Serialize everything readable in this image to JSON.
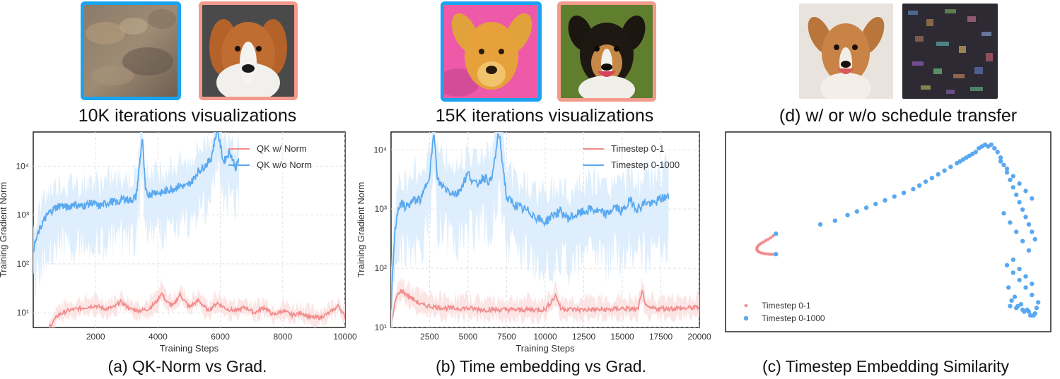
{
  "colors": {
    "blue": "#5aa9f0",
    "blue_fill": "#d8ebfb",
    "red": "#f28d8d",
    "red_fill": "#fbe0e0",
    "frame_blue": "#1aa3ee",
    "frame_pink": "#f39a8c"
  },
  "top_row": {
    "group_a": {
      "caption": "10K iterations visualizations",
      "left_image": "noise-texture-image",
      "right_image": "dog-portrait-image"
    },
    "group_b": {
      "caption": "15K iterations visualizations",
      "left_image": "painted-dog-image",
      "right_image": "dog-portrait-image"
    },
    "group_d": {
      "caption": "(d) w/ or w/o schedule transfer",
      "left_image": "dog-portrait-image",
      "right_image": "noise-texture-image"
    }
  },
  "chart_data": [
    {
      "id": "a",
      "type": "line",
      "caption": "(a) QK-Norm vs Grad.",
      "xlabel": "Training Steps",
      "ylabel": "Training Gradient Norm",
      "yscale": "log",
      "xlim": [
        0,
        10000
      ],
      "ylim": [
        5,
        50000
      ],
      "x_ticks": [
        2000,
        4000,
        6000,
        8000,
        10000
      ],
      "x_tick_labels": [
        "2000",
        "4000",
        "6000",
        "8000",
        "10000"
      ],
      "y_ticks": [
        10,
        100,
        1000,
        10000
      ],
      "y_tick_labels": [
        "10¹",
        "10²",
        "10³",
        "10⁴"
      ],
      "legend_position": "top-right",
      "series": [
        {
          "name": "QK w/ Norm",
          "color": "#f28d8d",
          "x": [
            500,
            800,
            1100,
            1400,
            1700,
            2000,
            2300,
            2600,
            2800,
            3100,
            3400,
            3700,
            4000,
            4100,
            4300,
            4500,
            4700,
            5000,
            5300,
            5600,
            5900,
            6200,
            6500,
            6800,
            7100,
            7400,
            7700,
            8000,
            8300,
            8600,
            8900,
            9200,
            9500,
            9800,
            10000
          ],
          "y": [
            5,
            9,
            11,
            12,
            13,
            14,
            12,
            13,
            17,
            12,
            11,
            12,
            18,
            26,
            16,
            14,
            24,
            13,
            18,
            11,
            16,
            12,
            11,
            13,
            10,
            13,
            9,
            11,
            9,
            10,
            8,
            8,
            10,
            14,
            8
          ]
        },
        {
          "name": "QK w/o Norm",
          "color": "#5aa9f0",
          "x": [
            0,
            150,
            300,
            500,
            700,
            900,
            1100,
            1300,
            1500,
            1700,
            1900,
            2100,
            2300,
            2500,
            2700,
            2900,
            3100,
            3300,
            3500,
            3600,
            3700,
            3900,
            4100,
            4300,
            4500,
            4700,
            4900,
            5100,
            5300,
            5500,
            5700,
            5900,
            6100,
            6300,
            6500,
            6600
          ],
          "y": [
            200,
            400,
            700,
            1100,
            1400,
            1600,
            1400,
            1700,
            1500,
            1600,
            1800,
            1500,
            1700,
            1900,
            1800,
            2200,
            2000,
            2300,
            40000,
            3000,
            2600,
            3000,
            2800,
            3200,
            3500,
            4000,
            3800,
            5000,
            8000,
            10000,
            14000,
            60000,
            12000,
            20000,
            9000,
            15000
          ]
        }
      ],
      "band_note": "shaded raw-variance bands behind each series"
    },
    {
      "id": "b",
      "type": "line",
      "caption": "(b) Time embedding vs Grad.",
      "xlabel": "Training Steps",
      "ylabel": "Training Gradient Norm",
      "yscale": "log",
      "xlim": [
        0,
        20000
      ],
      "ylim": [
        10,
        20000
      ],
      "x_ticks": [
        2500,
        5000,
        7500,
        10000,
        12500,
        15000,
        17500,
        20000
      ],
      "x_tick_labels": [
        "2500",
        "5000",
        "7500",
        "10000",
        "12500",
        "15000",
        "17500",
        "20000"
      ],
      "y_ticks": [
        10,
        100,
        1000,
        10000
      ],
      "y_tick_labels": [
        "10¹",
        "10²",
        "10³",
        "10⁴"
      ],
      "legend_position": "top-right",
      "series": [
        {
          "name": "Timestep 0-1",
          "color": "#f28d8d",
          "x": [
            0,
            300,
            600,
            900,
            1200,
            1600,
            2000,
            2500,
            3000,
            4000,
            5000,
            6000,
            7000,
            8000,
            9000,
            10000,
            10700,
            11000,
            12000,
            13000,
            14000,
            15000,
            16000,
            16300,
            16600,
            17000,
            18000,
            19000,
            20000
          ],
          "y": [
            10,
            30,
            42,
            38,
            33,
            28,
            24,
            23,
            22,
            21,
            21,
            20,
            20,
            20,
            20,
            20,
            35,
            21,
            20,
            20,
            20,
            21,
            20,
            40,
            21,
            21,
            21,
            21,
            22
          ]
        },
        {
          "name": "Timestep 0-1000",
          "color": "#5aa9f0",
          "x": [
            0,
            200,
            400,
            600,
            1000,
            1500,
            2000,
            2500,
            2800,
            3000,
            3300,
            3800,
            4300,
            5000,
            5500,
            6000,
            6500,
            7000,
            7500,
            8000,
            8500,
            9000,
            9500,
            10000,
            10500,
            11000,
            11500,
            12000,
            13000,
            14000,
            14500,
            15000,
            15500,
            16000,
            16500,
            17000,
            17500,
            18000
          ],
          "y": [
            20,
            300,
            900,
            1200,
            1100,
            1400,
            1500,
            4000,
            20000,
            3000,
            2500,
            2000,
            1800,
            4000,
            2500,
            3500,
            2800,
            20000,
            1500,
            1200,
            1000,
            900,
            700,
            600,
            800,
            900,
            700,
            800,
            1000,
            800,
            1100,
            900,
            1400,
            1000,
            1300,
            1200,
            1500,
            1600
          ]
        }
      ],
      "band_note": "shaded raw-variance bands behind each series"
    },
    {
      "id": "c",
      "type": "scatter",
      "caption": "(c) Timestep Embedding Similarity",
      "xlabel": "",
      "ylabel": "",
      "axes_hidden": true,
      "xlim": [
        0,
        1
      ],
      "ylim": [
        0,
        1
      ],
      "legend_position": "lower-left",
      "series": [
        {
          "name": "Timestep 0-1",
          "color": "#f28d8d",
          "x": [
            0.14,
            0.132,
            0.124,
            0.116,
            0.108,
            0.1,
            0.092,
            0.086,
            0.082,
            0.08,
            0.08,
            0.083,
            0.088,
            0.095,
            0.103,
            0.111,
            0.119,
            0.127,
            0.135,
            0.14
          ],
          "y": [
            0.49,
            0.478,
            0.468,
            0.46,
            0.452,
            0.444,
            0.436,
            0.428,
            0.42,
            0.412,
            0.404,
            0.396,
            0.39,
            0.386,
            0.383,
            0.381,
            0.38,
            0.379,
            0.379,
            0.379
          ]
        },
        {
          "name": "Timestep 0-1000",
          "color": "#5aa9f0",
          "x": [
            0.141,
            0.141,
            0.283,
            0.33,
            0.37,
            0.4,
            0.43,
            0.46,
            0.49,
            0.52,
            0.55,
            0.58,
            0.6,
            0.62,
            0.64,
            0.66,
            0.68,
            0.7,
            0.72,
            0.73,
            0.74,
            0.75,
            0.76,
            0.77,
            0.78,
            0.79,
            0.8,
            0.81,
            0.82,
            0.83,
            0.84,
            0.85,
            0.86,
            0.87,
            0.88,
            0.89,
            0.9,
            0.91,
            0.92,
            0.93,
            0.94,
            0.95,
            0.96,
            0.97,
            0.86,
            0.88,
            0.9,
            0.92,
            0.94,
            0.96,
            0.87,
            0.89,
            0.91,
            0.93,
            0.95,
            0.88,
            0.9,
            0.92,
            0.94,
            0.96,
            0.98,
            0.89,
            0.91,
            0.93,
            0.95,
            0.97,
            0.885,
            0.905,
            0.925,
            0.945,
            0.965,
            0.9,
            0.92,
            0.94,
            0.96,
            0.895,
            0.915,
            0.935,
            0.955,
            0.975
          ],
          "y": [
            0.49,
            0.38,
            0.54,
            0.56,
            0.59,
            0.61,
            0.63,
            0.65,
            0.67,
            0.69,
            0.71,
            0.73,
            0.75,
            0.77,
            0.79,
            0.81,
            0.83,
            0.85,
            0.87,
            0.88,
            0.89,
            0.9,
            0.91,
            0.92,
            0.93,
            0.95,
            0.96,
            0.97,
            0.96,
            0.97,
            0.95,
            0.93,
            0.9,
            0.86,
            0.82,
            0.78,
            0.74,
            0.7,
            0.66,
            0.62,
            0.58,
            0.54,
            0.5,
            0.46,
            0.88,
            0.84,
            0.8,
            0.76,
            0.72,
            0.68,
            0.6,
            0.55,
            0.5,
            0.45,
            0.4,
            0.32,
            0.28,
            0.24,
            0.2,
            0.16,
            0.12,
            0.1,
            0.09,
            0.08,
            0.07,
            0.06,
            0.2,
            0.15,
            0.11,
            0.08,
            0.05,
            0.35,
            0.3,
            0.26,
            0.22,
            0.13,
            0.1,
            0.07,
            0.05,
            0.09
          ]
        }
      ]
    }
  ]
}
